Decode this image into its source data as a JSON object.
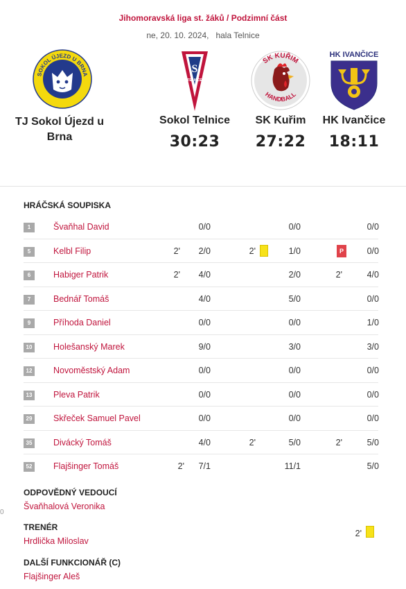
{
  "league": "Jihomoravská liga st. žáků / Podzimní část",
  "date": "ne, 20. 10. 2024,",
  "venue": "hala Telnice",
  "home": {
    "name": "TJ Sokol Újezd u Brna",
    "logo_text_top": "SOKOL ÚJEZD U BRNA",
    "logo_text_bottom": "handball"
  },
  "opponents": [
    {
      "name": "Sokol Telnice",
      "score": "30:23",
      "logo_text": "TELNICE",
      "logo_letter": "S"
    },
    {
      "name": "SK Kuřim",
      "score": "27:22",
      "logo_text_top": "SK KUŘIM",
      "logo_text_bottom": "HANDBALL"
    },
    {
      "name": "HK Ivančice",
      "score": "18:11",
      "logo_text": "HK IVANČICE"
    }
  ],
  "roster_title": "HRÁČSKÁ SOUPISKA",
  "players": [
    {
      "number": "1",
      "name": "Švaňhal David",
      "m1": "",
      "g1": "0/0",
      "m2": "",
      "g2": "0/0",
      "m3": "",
      "g3": "0/0"
    },
    {
      "number": "5",
      "name": "Kelbl Filip",
      "m1": "2'",
      "g1": "2/0",
      "m2": "2'",
      "g2": "1/0",
      "m3": "",
      "g3": "0/0",
      "card2": "yellow",
      "card3": "red",
      "card3_label": "P"
    },
    {
      "number": "6",
      "name": "Habiger Patrik",
      "m1": "2'",
      "g1": "4/0",
      "m2": "",
      "g2": "2/0",
      "m3": "2'",
      "g3": "4/0"
    },
    {
      "number": "7",
      "name": "Bednář Tomáš",
      "m1": "",
      "g1": "4/0",
      "m2": "",
      "g2": "5/0",
      "m3": "",
      "g3": "0/0"
    },
    {
      "number": "9",
      "name": "Příhoda Daniel",
      "m1": "",
      "g1": "0/0",
      "m2": "",
      "g2": "0/0",
      "m3": "",
      "g3": "1/0"
    },
    {
      "number": "10",
      "name": "Holešanský Marek",
      "m1": "",
      "g1": "9/0",
      "m2": "",
      "g2": "3/0",
      "m3": "",
      "g3": "3/0"
    },
    {
      "number": "12",
      "name": "Novoměstský Adam",
      "m1": "",
      "g1": "0/0",
      "m2": "",
      "g2": "0/0",
      "m3": "",
      "g3": "0/0"
    },
    {
      "number": "13",
      "name": "Pleva Patrik",
      "m1": "",
      "g1": "0/0",
      "m2": "",
      "g2": "0/0",
      "m3": "",
      "g3": "0/0"
    },
    {
      "number": "29",
      "name": "Skřeček Samuel Pavel",
      "m1": "",
      "g1": "0/0",
      "m2": "",
      "g2": "0/0",
      "m3": "",
      "g3": "0/0"
    },
    {
      "number": "35",
      "name": "Divácký Tomáš",
      "m1": "",
      "g1": "4/0",
      "m2": "2'",
      "g2": "5/0",
      "m3": "2'",
      "g3": "5/0"
    },
    {
      "number": "52",
      "name": "Flajšinger Tomáš",
      "m1": "2'",
      "g1": "7/1",
      "m2": "",
      "g2": "11/1",
      "m3": "",
      "g3": "5/0"
    }
  ],
  "officials": {
    "responsible_title": "ODPOVĚDNÝ VEDOUCÍ",
    "responsible_name": "Švaňhalová Veronika",
    "coach_title": "TRENÉR",
    "coach_name": "Hrdlička Miloslav",
    "coach_minutes": "2'",
    "coach_card": "yellow",
    "other_title": "DALŠÍ FUNKCIONÁŘ (C)",
    "other_name": "Flajšinger Aleš"
  },
  "edge_glyph": "0",
  "colors": {
    "accent": "#c0143c",
    "yellow_card": "#f7e21a",
    "red_card": "#e0424a",
    "number_badge": "#a9a9a9"
  }
}
